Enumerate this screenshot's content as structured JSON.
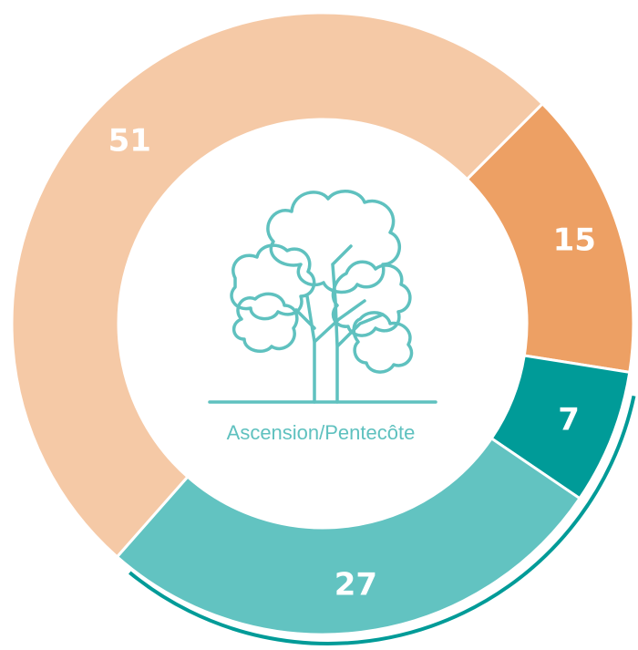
{
  "chart_data": {
    "type": "donut",
    "center_label": "Ascension/Pentecôte",
    "categories": [
      null,
      null,
      null,
      null
    ],
    "values": [
      15,
      7,
      27,
      51
    ],
    "colors": [
      "#eda064",
      "#009b98",
      "#62c3c1",
      "#f5c9a6"
    ]
  }
}
